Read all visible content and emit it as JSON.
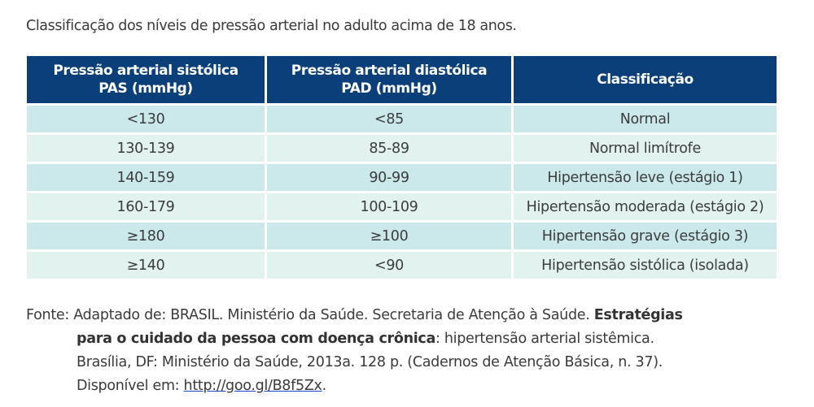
{
  "caption": "Classificação dos níveis de pressão arterial no adulto acima de 18 anos.",
  "table": {
    "headers": [
      {
        "line1": "Pressão arterial sistólica",
        "line2": "PAS (mmHg)"
      },
      {
        "line1": "Pressão arterial diastólica",
        "line2": "PAD (mmHg)"
      },
      {
        "line1": "Classificação",
        "line2": ""
      }
    ],
    "rows": [
      [
        "<130",
        "<85",
        "Normal"
      ],
      [
        "130-139",
        "85-89",
        "Normal limítrofe"
      ],
      [
        "140-159",
        "90-99",
        "Hipertensão leve (estágio 1)"
      ],
      [
        "160-179",
        "100-109",
        "Hipertensão moderada (estágio 2)"
      ],
      [
        "≥180",
        "≥100",
        "Hipertensão grave (estágio 3)"
      ],
      [
        "≥140",
        "<90",
        "Hipertensão sistólica (isolada)"
      ]
    ]
  },
  "source": {
    "prefix": "Fonte: Adaptado de: BRASIL. Ministério da Saúde. Secretaria de Atenção à Saúde. ",
    "bold_part1": "Estratégias",
    "bold_part2": "para o cuidado da pessoa com doença crônica",
    "after_bold": ": hipertensão arterial sistêmica.",
    "line3": "Brasília, DF: Ministério da Saúde, 2013a. 128 p. (Cadernos de Atenção Básica, n. 37).",
    "available_label": "Disponível em: ",
    "link": "http://goo.gl/B8f5Zx",
    "end": "."
  },
  "colors": {
    "header_bg": "#0b3f7a",
    "row_odd": "#cbe9eb",
    "row_even": "#e2f2ee",
    "link_underline": "#1a3fc8"
  }
}
